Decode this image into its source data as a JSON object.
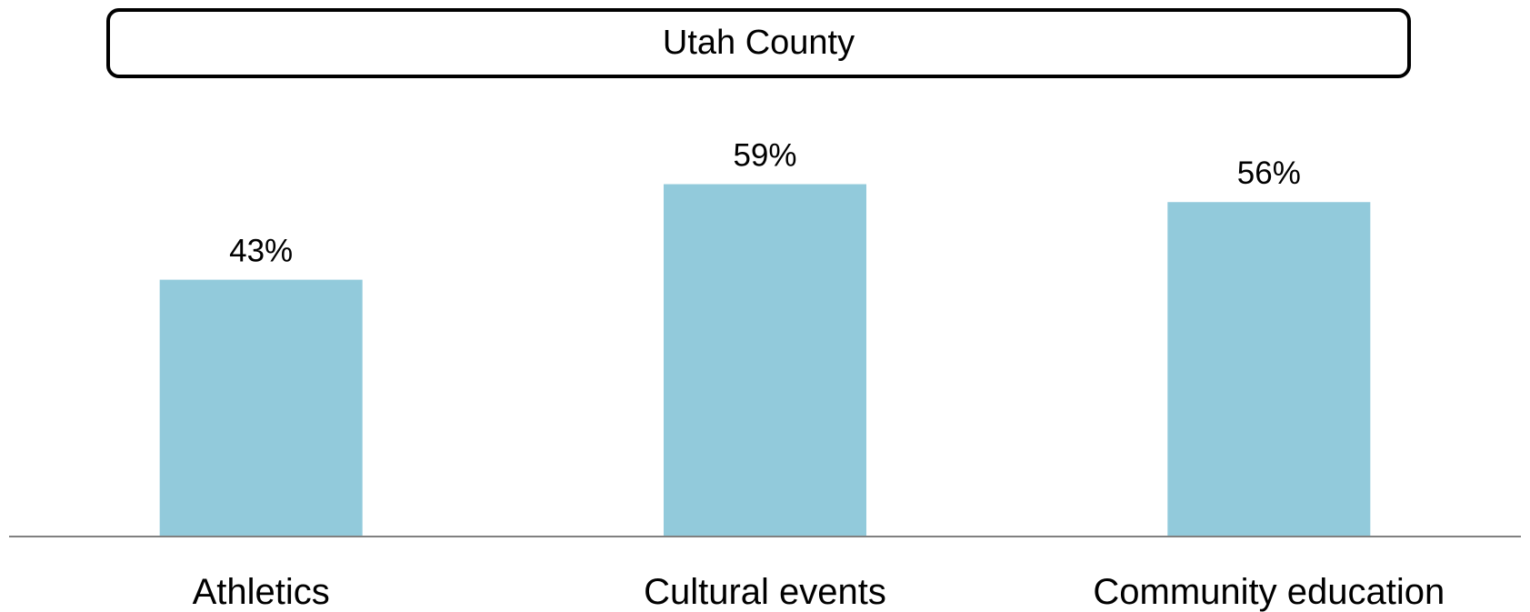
{
  "chart_data": {
    "type": "bar",
    "title": "Utah County",
    "categories": [
      "Athletics",
      "Cultural events",
      "Community education"
    ],
    "values": [
      43,
      59,
      56
    ],
    "value_labels": [
      "43%",
      "59%",
      "56%"
    ],
    "unit": "%",
    "xlabel": "",
    "ylabel": "",
    "ylim": [
      0,
      67
    ],
    "grid": false,
    "legend": "none",
    "bar_color": "#92CADB",
    "axis_color": "#808080"
  }
}
